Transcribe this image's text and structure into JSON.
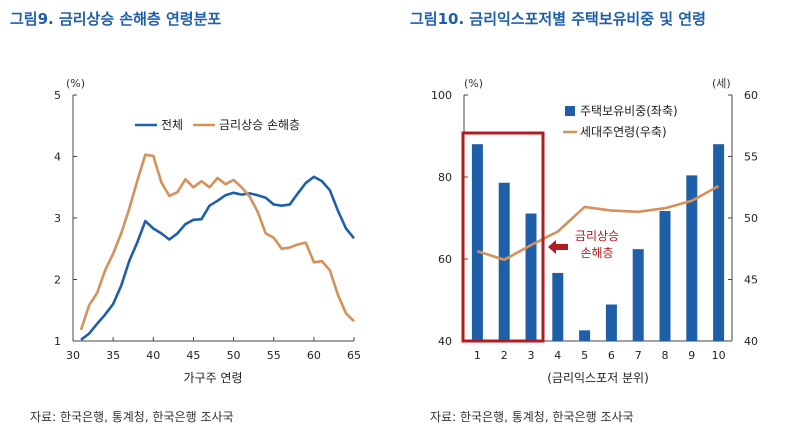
{
  "colors": {
    "title": "#1f5fa8",
    "blue": "#1f5fa8",
    "orange": "#d4915a",
    "highlight": "#b01c22"
  },
  "left": {
    "title": "그림9. 금리상승 손해층 연령분포",
    "unit": "(%)",
    "source": "자료: 한국은행, 통계청, 한국은행 조사국"
  },
  "right": {
    "title": "그림10. 금리익스포저별 주택보유비중 및 연령",
    "unit_left": "(%)",
    "unit_right": "(세)",
    "annotation": [
      "금리상승",
      "손해층"
    ],
    "source": "자료: 한국은행, 통계청, 한국은행 조사국"
  },
  "chart_data": [
    {
      "type": "line",
      "xlabel": "가구주 연령",
      "ylabel": "",
      "xlim": [
        30,
        65
      ],
      "ylim": [
        1,
        5
      ],
      "xticks": [
        30,
        35,
        40,
        45,
        50,
        55,
        60,
        65
      ],
      "yticks": [
        1,
        2,
        3,
        4,
        5
      ],
      "legend": "top-left",
      "series": [
        {
          "name": "전체",
          "color": "#1f5fa8",
          "x": [
            31,
            32,
            33,
            34,
            35,
            36,
            37,
            38,
            39,
            40,
            41,
            42,
            43,
            44,
            45,
            46,
            47,
            48,
            49,
            50,
            51,
            52,
            53,
            54,
            55,
            56,
            57,
            58,
            59,
            60,
            61,
            62,
            63,
            64,
            65
          ],
          "y": [
            1.02,
            1.12,
            1.28,
            1.43,
            1.6,
            1.9,
            2.3,
            2.6,
            2.95,
            2.83,
            2.75,
            2.65,
            2.75,
            2.9,
            2.97,
            2.98,
            3.2,
            3.28,
            3.37,
            3.41,
            3.38,
            3.4,
            3.37,
            3.33,
            3.22,
            3.2,
            3.22,
            3.4,
            3.57,
            3.67,
            3.6,
            3.45,
            3.12,
            2.83,
            2.67
          ]
        },
        {
          "name": "금리상승 손해층",
          "color": "#d4915a",
          "x": [
            31,
            32,
            33,
            34,
            35,
            36,
            37,
            38,
            39,
            40,
            41,
            42,
            43,
            44,
            45,
            46,
            47,
            48,
            49,
            50,
            51,
            52,
            53,
            54,
            55,
            56,
            57,
            58,
            59,
            60,
            61,
            62,
            63,
            64,
            65
          ],
          "y": [
            1.18,
            1.58,
            1.78,
            2.15,
            2.42,
            2.75,
            3.15,
            3.6,
            4.03,
            4.01,
            3.58,
            3.36,
            3.42,
            3.63,
            3.5,
            3.6,
            3.5,
            3.65,
            3.55,
            3.62,
            3.5,
            3.35,
            3.1,
            2.75,
            2.68,
            2.5,
            2.52,
            2.57,
            2.6,
            2.28,
            2.3,
            2.15,
            1.75,
            1.45,
            1.32
          ]
        }
      ]
    },
    {
      "type": "bar",
      "xlabel": "(금리익스포저 분위)",
      "ylabel": "",
      "categories": [
        "1",
        "2",
        "3",
        "4",
        "5",
        "6",
        "7",
        "8",
        "9",
        "10"
      ],
      "ylim": [
        40,
        100
      ],
      "yticks": [
        40,
        60,
        80,
        100
      ],
      "ylim_right": [
        40,
        60
      ],
      "yticks_right": [
        40,
        45,
        50,
        55,
        60
      ],
      "legend": "top-center",
      "highlight_categories": [
        "1",
        "2",
        "3"
      ],
      "series": [
        {
          "name": "주택보유비중(좌축)",
          "type": "bar",
          "axis": "left",
          "color": "#1f5fa8",
          "values": [
            88,
            78.6,
            71.1,
            56.6,
            42.6,
            48.9,
            62.4,
            71.7,
            80.4,
            88
          ]
        },
        {
          "name": "세대주연령(우축)",
          "type": "line",
          "axis": "right",
          "color": "#d4915a",
          "values": [
            47.3,
            46.6,
            47.8,
            48.9,
            50.9,
            50.6,
            50.5,
            50.8,
            51.4,
            52.6
          ]
        }
      ]
    }
  ]
}
